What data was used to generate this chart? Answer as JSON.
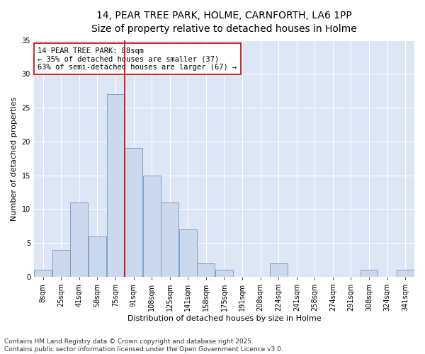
{
  "title_line1": "14, PEAR TREE PARK, HOLME, CARNFORTH, LA6 1PP",
  "title_line2": "Size of property relative to detached houses in Holme",
  "xlabel": "Distribution of detached houses by size in Holme",
  "ylabel": "Number of detached properties",
  "bar_color": "#ccd9ed",
  "bar_edgecolor": "#7099c0",
  "background_color": "#dce6f5",
  "grid_color": "#ffffff",
  "annotation_text": "14 PEAR TREE PARK: 88sqm\n← 35% of detached houses are smaller (37)\n63% of semi-detached houses are larger (67) →",
  "vline_color": "#cc0000",
  "vline_bin_index": 4,
  "categories": [
    "8sqm",
    "25sqm",
    "41sqm",
    "58sqm",
    "75sqm",
    "91sqm",
    "108sqm",
    "125sqm",
    "141sqm",
    "158sqm",
    "175sqm",
    "191sqm",
    "208sqm",
    "224sqm",
    "241sqm",
    "258sqm",
    "274sqm",
    "291sqm",
    "308sqm",
    "324sqm",
    "341sqm"
  ],
  "values": [
    1,
    4,
    11,
    6,
    27,
    19,
    15,
    11,
    7,
    2,
    1,
    0,
    0,
    2,
    0,
    0,
    0,
    0,
    1,
    0,
    1
  ],
  "ylim": [
    0,
    35
  ],
  "yticks": [
    0,
    5,
    10,
    15,
    20,
    25,
    30,
    35
  ],
  "footnote": "Contains HM Land Registry data © Crown copyright and database right 2025.\nContains public sector information licensed under the Open Government Licence v3.0.",
  "title_fontsize": 10,
  "subtitle_fontsize": 9,
  "axis_label_fontsize": 8,
  "tick_fontsize": 7,
  "annotation_fontsize": 7.5,
  "footnote_fontsize": 6.5
}
